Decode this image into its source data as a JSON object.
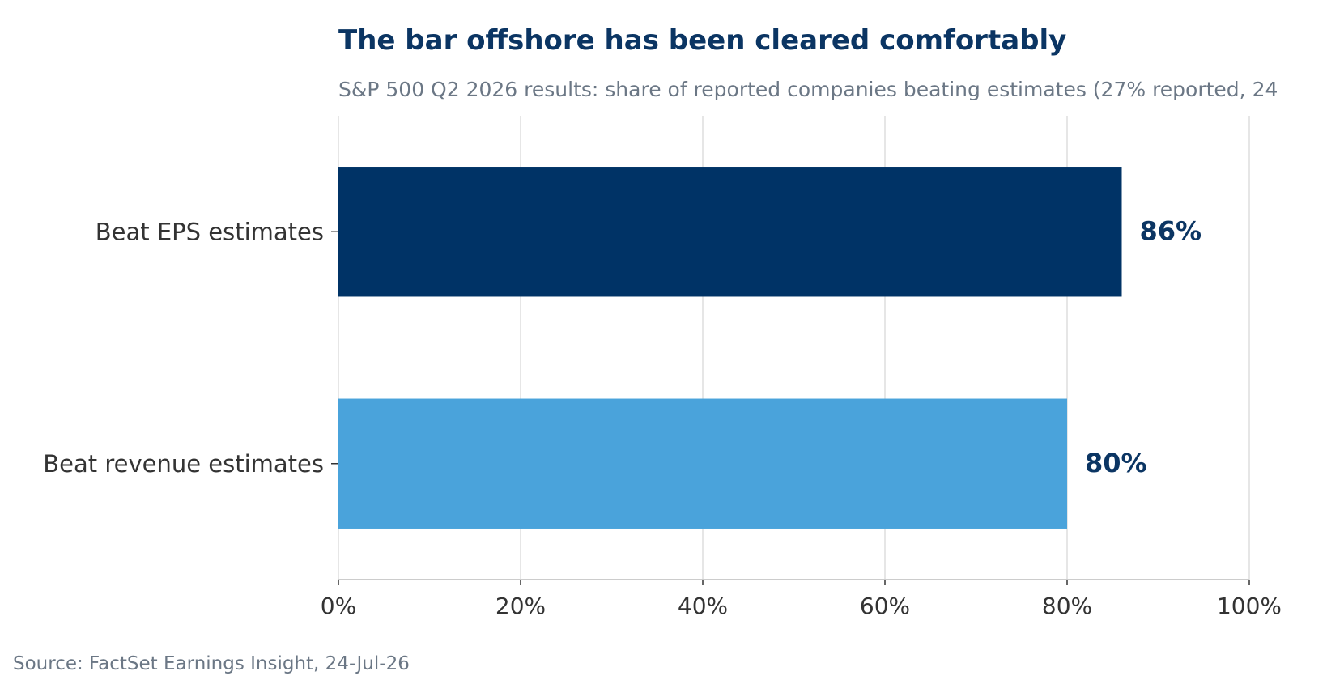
{
  "chart_data": {
    "type": "bar",
    "orientation": "horizontal",
    "title": "The bar offshore has been cleared comfortably",
    "subtitle": "S&P 500 Q2 2026 results: share of reported companies beating estimates (27% reported, 24",
    "categories": [
      "Beat EPS estimates",
      "Beat revenue estimates"
    ],
    "values": [
      86,
      80
    ],
    "data_labels": [
      "86%",
      "80%"
    ],
    "bar_colors": [
      "#003366",
      "#4aa3db"
    ],
    "xlim": [
      0,
      100
    ],
    "x_ticks": [
      0,
      20,
      40,
      60,
      80,
      100
    ],
    "x_tick_labels": [
      "0%",
      "20%",
      "40%",
      "60%",
      "80%",
      "100%"
    ],
    "xlabel": "",
    "ylabel": "",
    "grid": "vertical",
    "legend": "none",
    "source": "Source: FactSet Earnings Insight, 24-Jul-26"
  }
}
